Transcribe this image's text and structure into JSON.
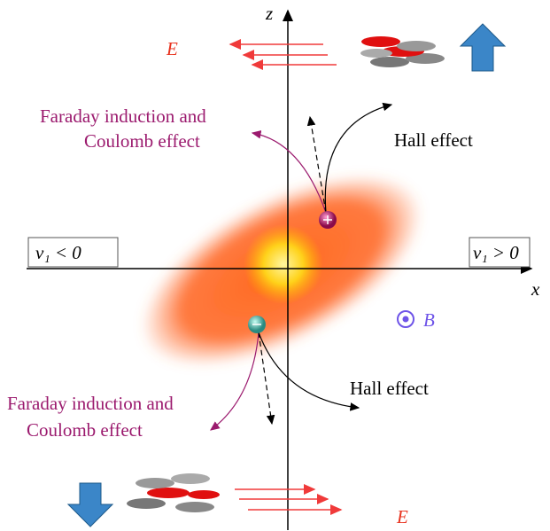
{
  "axes": {
    "z": "z",
    "x": "x"
  },
  "top": {
    "field_label": "E",
    "faraday": [
      "Faraday induction and",
      "Coulomb effect"
    ],
    "hall": "Hall effect"
  },
  "bottom": {
    "field_label": "E",
    "faraday": [
      "Faraday induction and",
      "Coulomb effect"
    ],
    "hall": "Hall effect"
  },
  "velocity": {
    "left": "v₁ < 0",
    "right": "v₁ > 0"
  },
  "magnetic_field": "B"
}
